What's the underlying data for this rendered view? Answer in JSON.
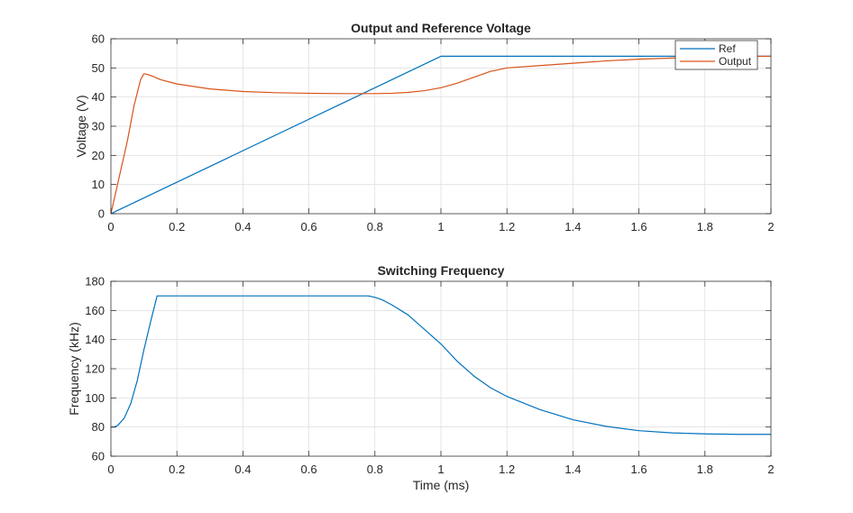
{
  "chart_data": [
    {
      "type": "line",
      "title": "Output and Reference Voltage",
      "xlabel": "",
      "ylabel": "Voltage (V)",
      "xlim": [
        0,
        2
      ],
      "ylim": [
        0,
        60
      ],
      "xticks": [
        0,
        0.2,
        0.4,
        0.6,
        0.8,
        1,
        1.2,
        1.4,
        1.6,
        1.8,
        2
      ],
      "xtick_labels": [
        "0",
        "0.2",
        "0.4",
        "0.6",
        "0.8",
        "1",
        "1.2",
        "1.4",
        "1.6",
        "1.8",
        "2"
      ],
      "yticks": [
        0,
        10,
        20,
        30,
        40,
        50,
        60
      ],
      "ytick_labels": [
        "0",
        "10",
        "20",
        "30",
        "40",
        "50",
        "60"
      ],
      "grid": true,
      "legend": "top-right",
      "series": [
        {
          "name": "Ref",
          "color": "#0072BD",
          "x": [
            0,
            1,
            2
          ],
          "y": [
            0,
            54,
            54
          ]
        },
        {
          "name": "Output",
          "color": "#D95319",
          "x": [
            0,
            0.01,
            0.03,
            0.05,
            0.07,
            0.09,
            0.1,
            0.11,
            0.13,
            0.15,
            0.2,
            0.3,
            0.4,
            0.5,
            0.6,
            0.7,
            0.8,
            0.85,
            0.9,
            0.95,
            1.0,
            1.05,
            1.1,
            1.15,
            1.2,
            1.3,
            1.4,
            1.5,
            1.6,
            1.7,
            1.8,
            1.9,
            2.0
          ],
          "y": [
            0,
            5,
            15,
            25,
            37,
            46,
            48,
            47.8,
            47,
            46,
            44.5,
            42.8,
            41.9,
            41.5,
            41.3,
            41.2,
            41.2,
            41.3,
            41.6,
            42.2,
            43.2,
            44.8,
            46.8,
            48.8,
            50.0,
            50.8,
            51.6,
            52.4,
            53.0,
            53.4,
            53.7,
            53.9,
            54.0
          ]
        }
      ]
    },
    {
      "type": "line",
      "title": "Switching Frequency",
      "xlabel": "Time (ms)",
      "ylabel": "Frequency (kHz)",
      "xlim": [
        0,
        2
      ],
      "ylim": [
        60,
        180
      ],
      "xticks": [
        0,
        0.2,
        0.4,
        0.6,
        0.8,
        1,
        1.2,
        1.4,
        1.6,
        1.8,
        2
      ],
      "xtick_labels": [
        "0",
        "0.2",
        "0.4",
        "0.6",
        "0.8",
        "1",
        "1.2",
        "1.4",
        "1.6",
        "1.8",
        "2"
      ],
      "yticks": [
        60,
        80,
        100,
        120,
        140,
        160,
        180
      ],
      "ytick_labels": [
        "60",
        "80",
        "100",
        "120",
        "140",
        "160",
        "180"
      ],
      "grid": true,
      "series": [
        {
          "color": "#0072BD",
          "x": [
            0,
            0.01,
            0.02,
            0.04,
            0.06,
            0.08,
            0.1,
            0.12,
            0.14,
            0.2,
            0.4,
            0.6,
            0.75,
            0.78,
            0.8,
            0.82,
            0.85,
            0.9,
            0.95,
            1.0,
            1.05,
            1.1,
            1.15,
            1.2,
            1.3,
            1.4,
            1.5,
            1.6,
            1.7,
            1.8,
            1.9,
            2.0
          ],
          "y": [
            80,
            80,
            81,
            86,
            96,
            112,
            133,
            152,
            170,
            170,
            170,
            170,
            170,
            170,
            169,
            167.5,
            164,
            157,
            147,
            137,
            125,
            115,
            107,
            101,
            92,
            85,
            80.5,
            77.5,
            76,
            75.3,
            75,
            75
          ]
        }
      ]
    }
  ]
}
